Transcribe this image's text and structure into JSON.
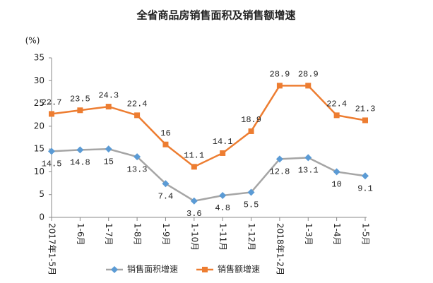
{
  "chart_data": {
    "type": "line",
    "title": "全省商品房销售面积及销售额增速",
    "y_label": "(%)",
    "categories": [
      "2017年1-5月",
      "1-6月",
      "1-7月",
      "1-8月",
      "1-9月",
      "1-10月",
      "1-11月",
      "1-12月",
      "2018年1-2月",
      "1-3月",
      "1-4月",
      "1-5月"
    ],
    "series": [
      {
        "name": "销售面积增速",
        "color": "#a5a5a5",
        "marker_color": "#5b9bd5",
        "marker": "diamond",
        "label_position": "below",
        "values": [
          14.5,
          14.8,
          15,
          13.3,
          7.4,
          3.6,
          4.8,
          5.5,
          12.8,
          13.1,
          10,
          9.1
        ]
      },
      {
        "name": "销售额增速",
        "color": "#ed7d31",
        "marker_color": "#ed7d31",
        "marker": "square",
        "label_position": "above",
        "values": [
          22.7,
          23.5,
          24.3,
          22.4,
          16,
          11.1,
          14.1,
          18.9,
          28.9,
          28.9,
          22.4,
          21.3
        ]
      }
    ],
    "ylim": [
      0,
      35
    ],
    "yticks": [
      0,
      5,
      10,
      15,
      20,
      25,
      30,
      35
    ],
    "grid": false,
    "legend": "bottom"
  }
}
